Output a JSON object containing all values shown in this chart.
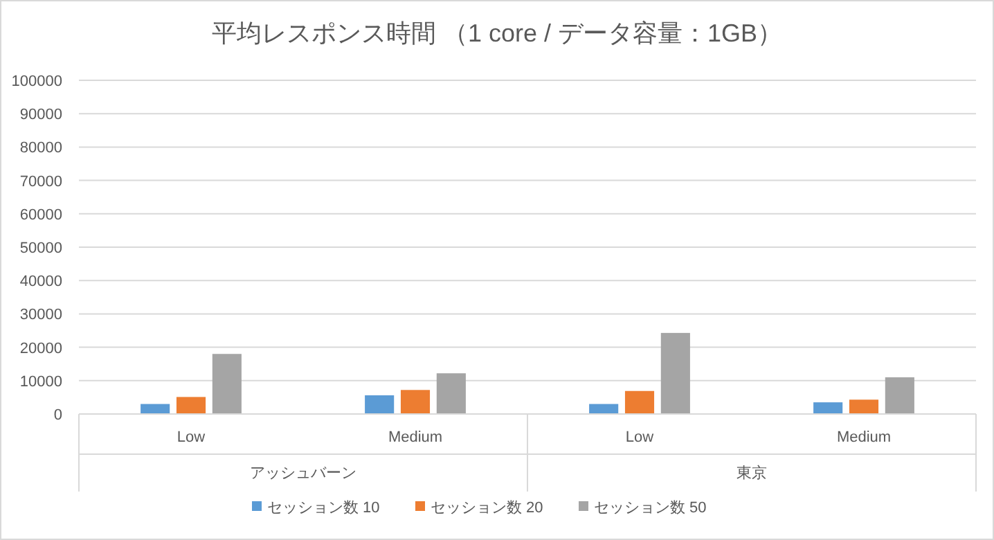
{
  "chart_data": {
    "type": "bar",
    "title": "平均レスポンス時間 （1 core / データ容量：1GB）",
    "categories": [
      "Low",
      "Medium",
      "Low",
      "Medium"
    ],
    "annotations": [
      "アッシュバーン",
      "東京"
    ],
    "series": [
      {
        "name": "セッション数 10",
        "color": "#5b9bd5",
        "values": [
          3000,
          5600,
          3000,
          3500
        ]
      },
      {
        "name": "セッション数 20",
        "color": "#ed7d31",
        "values": [
          5100,
          7200,
          6900,
          4300
        ]
      },
      {
        "name": "セッション数 50",
        "color": "#a5a5a5",
        "values": [
          18000,
          12200,
          24300,
          11000
        ]
      }
    ],
    "ylim": [
      0,
      100000
    ],
    "yticks": [
      0,
      10000,
      20000,
      30000,
      40000,
      50000,
      60000,
      70000,
      80000,
      90000,
      100000
    ],
    "grid": "y",
    "legend": "bottom"
  }
}
